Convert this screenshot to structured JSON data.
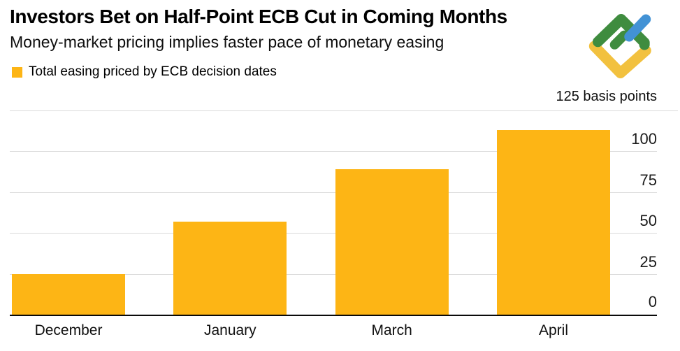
{
  "header": {
    "title": "Investors Bet on Half-Point ECB Cut in Coming Months",
    "subtitle": "Money-market pricing implies faster pace of monetary easing"
  },
  "legend": {
    "label": "Total easing priced by ECB decision dates",
    "swatch_color": "#FDB515"
  },
  "axis": {
    "unit_label": "125 basis points",
    "tick_labels": [
      "0",
      "25",
      "50",
      "75",
      "100"
    ]
  },
  "logo": {
    "name": "litefinance-logo",
    "green": "#3F8C3F",
    "yellow": "#F2C13F",
    "blue": "#4292D5"
  },
  "chart_data": {
    "type": "bar",
    "title": "Investors Bet on Half-Point ECB Cut in Coming Months",
    "subtitle": "Money-market pricing implies faster pace of monetary easing",
    "legend_entries": [
      "Total easing priced by ECB decision dates"
    ],
    "legend_position": "top-left",
    "categories": [
      "December",
      "January",
      "March",
      "April"
    ],
    "values": [
      25,
      57,
      89,
      113
    ],
    "xlabel": "",
    "ylabel": "basis points",
    "ylim": [
      0,
      125
    ],
    "yticks": [
      0,
      25,
      50,
      75,
      100,
      125
    ],
    "ytick_top_label": "125 basis points",
    "axis_labels_side": "right",
    "grid": true,
    "bar_color": "#FDB515"
  }
}
